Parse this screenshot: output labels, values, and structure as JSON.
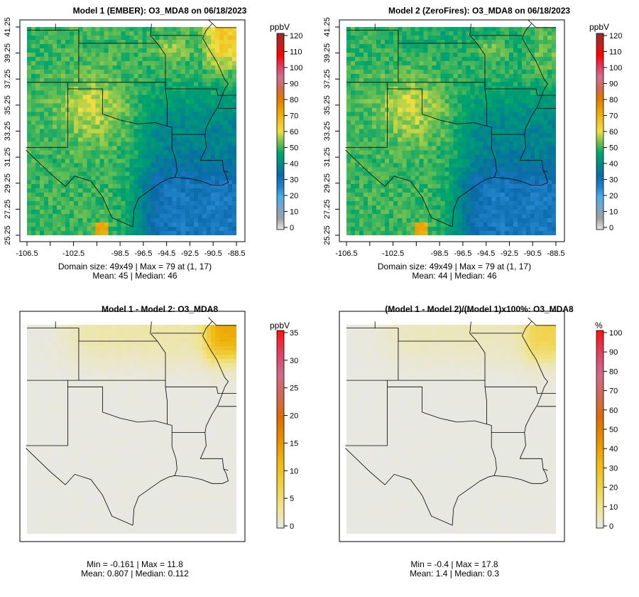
{
  "panels": [
    {
      "title": "Model 1 (EMBER): O3_MDA8 on 06/18/2023",
      "unit": "ppbV",
      "stat1": "Domain size: 49x49 | Max = 79 at (1, 17)",
      "stat2": "Mean: 45 |  Median: 46"
    },
    {
      "title": "Model 2 (ZeroFires): O3_MDA8 on 06/18/2023",
      "unit": "ppbV",
      "stat1": "Domain size: 49x49 | Max = 79 at (1, 17)",
      "stat2": "Mean: 44 |  Median: 46"
    },
    {
      "title": "Model 1 - Model 2: O3_MDA8",
      "unit": "ppbV",
      "stat1": "Min = -0.161 | Max = 11.8",
      "stat2": "Mean: 0.807 |  Median: 0.112"
    },
    {
      "title": "(Model 1 - Model 2)/(Model 1)x100%: O3_MDA8",
      "unit": "%",
      "stat1": "Min = -0.4 | Max = 17.8",
      "stat2": "Mean: 1.4 |  Median: 0.3"
    }
  ],
  "chart_data": [
    {
      "type": "heatmap",
      "title": "Model 1 (EMBER): O3_MDA8 on 06/18/2023",
      "grid": "49x49",
      "xlim": [
        -106.5,
        -88.5
      ],
      "ylim": [
        25.25,
        41.25
      ],
      "x_ticks": [
        "-106.5",
        "",
        "-102.5",
        "",
        "-98.5",
        "-96.5",
        "-94.5",
        "-92.5",
        "-90.5",
        "-88.5"
      ],
      "y_ticks": [
        "25.25",
        "27.25",
        "29.25",
        "31.25",
        "33.25",
        "35.25",
        "37.25",
        "39.25",
        "41.25"
      ],
      "colorbar": {
        "label": "ppbV",
        "range": [
          0,
          120
        ],
        "ticks": [
          "0",
          "10",
          "20",
          "30",
          "40",
          "50",
          "60",
          "70",
          "80",
          "90",
          "100",
          "110",
          "120"
        ]
      },
      "max": 79,
      "max_at": [
        1,
        17
      ],
      "mean": 45,
      "median": 46
    },
    {
      "type": "heatmap",
      "title": "Model 2 (ZeroFires): O3_MDA8 on 06/18/2023",
      "grid": "49x49",
      "xlim": [
        -106.5,
        -88.5
      ],
      "ylim": [
        25.25,
        41.25
      ],
      "colorbar": {
        "label": "ppbV",
        "range": [
          0,
          120
        ],
        "ticks": [
          "0",
          "10",
          "20",
          "30",
          "40",
          "50",
          "60",
          "70",
          "80",
          "90",
          "100",
          "110",
          "120"
        ]
      },
      "max": 79,
      "max_at": [
        1,
        17
      ],
      "mean": 44,
      "median": 46
    },
    {
      "type": "heatmap",
      "title": "Model 1 - Model 2: O3_MDA8",
      "colorbar": {
        "label": "ppbV",
        "range": [
          0,
          35
        ],
        "ticks": [
          "0",
          "5",
          "10",
          "15",
          "20",
          "25",
          "30",
          "35"
        ]
      },
      "min": -0.161,
      "max": 11.8,
      "mean": 0.807,
      "median": 0.112
    },
    {
      "type": "heatmap",
      "title": "(Model 1 - Model 2)/(Model 1)x100%: O3_MDA8",
      "colorbar": {
        "label": "%",
        "range": [
          0,
          100
        ],
        "ticks": [
          "0",
          "10",
          "20",
          "30",
          "40",
          "50",
          "60",
          "70",
          "80",
          "90",
          "100"
        ]
      },
      "min": -0.4,
      "max": 17.8,
      "mean": 1.4,
      "median": 0.3
    }
  ],
  "colors": {
    "abs_scale": [
      "#e4e4e4",
      "#a0a0a0",
      "#7aa6c8",
      "#4aaee6",
      "#1f80c8",
      "#0a6aa8",
      "#008c86",
      "#00a46c",
      "#70c050",
      "#f0e040",
      "#f0c020",
      "#e8a000",
      "#e07800",
      "#d06a50",
      "#d07090",
      "#e03a60",
      "#ff0000",
      "#c02020",
      "#a02828"
    ],
    "diff_scale": [
      "#e8e8e2",
      "#f0e48a",
      "#f0d040",
      "#efb810",
      "#e89000",
      "#dc6c00",
      "#d06a50",
      "#d06a8a",
      "#e04060",
      "#ff1010"
    ]
  }
}
